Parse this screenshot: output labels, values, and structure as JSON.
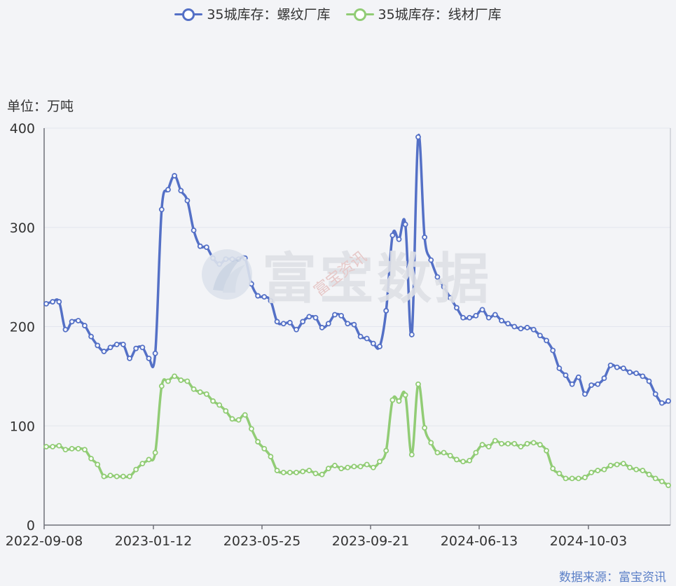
{
  "unit_label": "单位：万吨",
  "source_label": "数据来源：富宝资讯",
  "watermark": {
    "main": "富宝数据",
    "sub": "富宝资讯"
  },
  "colors": {
    "series1": "#5470c6",
    "series2": "#91cc75",
    "grid": "#e3e6ee",
    "axis": "#6e7079"
  },
  "chart_data": {
    "type": "line",
    "x_ticks": [
      "2022-09-08",
      "2023-01-12",
      "2023-05-25",
      "2023-09-21",
      "2024-06-13",
      "2024-10-03"
    ],
    "ylim": [
      0,
      400
    ],
    "y_ticks": [
      0,
      100,
      200,
      300,
      400
    ],
    "legend_position": "top-center",
    "grid": true,
    "series": [
      {
        "name": "35城库存：螺纹厂库",
        "values": [
          223,
          225,
          225,
          197,
          205,
          206,
          201,
          190,
          181,
          175,
          179,
          182,
          182,
          168,
          178,
          179,
          168,
          173,
          318,
          338,
          352,
          337,
          327,
          297,
          281,
          280,
          269,
          263,
          268,
          268,
          268,
          269,
          243,
          231,
          230,
          226,
          205,
          203,
          204,
          197,
          205,
          210,
          209,
          199,
          203,
          212,
          211,
          203,
          202,
          190,
          188,
          183,
          180,
          216,
          292,
          288,
          303,
          192,
          391,
          290,
          267,
          250,
          240,
          229,
          219,
          209,
          209,
          211,
          217,
          209,
          212,
          206,
          203,
          200,
          198,
          199,
          197,
          191,
          186,
          176,
          158,
          151,
          142,
          149,
          132,
          141,
          142,
          148,
          161,
          159,
          158,
          154,
          153,
          150,
          145,
          132,
          123,
          125
        ]
      },
      {
        "name": "35城库存：线材厂库",
        "values": [
          79,
          79,
          80,
          76,
          77,
          77,
          76,
          67,
          61,
          49,
          50,
          49,
          49,
          49,
          56,
          62,
          66,
          73,
          140,
          145,
          150,
          146,
          145,
          137,
          134,
          132,
          125,
          121,
          115,
          107,
          106,
          111,
          97,
          84,
          77,
          69,
          55,
          53,
          53,
          53,
          54,
          55,
          52,
          51,
          57,
          60,
          57,
          58,
          59,
          59,
          61,
          58,
          64,
          75,
          126,
          125,
          131,
          71,
          142,
          98,
          83,
          73,
          73,
          70,
          66,
          64,
          65,
          73,
          81,
          79,
          85,
          82,
          82,
          82,
          79,
          82,
          83,
          81,
          75,
          57,
          52,
          47,
          47,
          47,
          48,
          53,
          55,
          56,
          60,
          61,
          62,
          58,
          56,
          55,
          51,
          47,
          44,
          40
        ]
      }
    ]
  }
}
